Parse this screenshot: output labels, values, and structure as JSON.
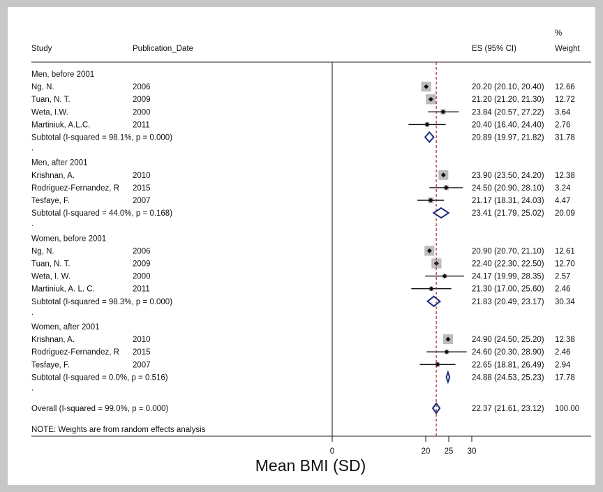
{
  "chart_data": {
    "type": "forest",
    "headers": {
      "study": "Study",
      "date": "Publication_Date",
      "es": "ES (95% CI)",
      "weight_pct": "%",
      "weight": "Weight"
    },
    "xlabel": "Mean BMI (SD)",
    "x_ticks": [
      "0",
      "20",
      "25",
      "30"
    ],
    "xlim": [
      0,
      30
    ],
    "reference_line": 22.37,
    "note": "NOTE: Weights are from random effects analysis",
    "groups": [
      {
        "label": "Men, before 2001",
        "studies": [
          {
            "study": "Ng, N.",
            "date": "2006",
            "es": 20.2,
            "lo": 20.1,
            "hi": 20.4,
            "es_text": "20.20 (20.10, 20.40)",
            "weight": "12.66",
            "w": 12.66
          },
          {
            "study": "Tuan, N. T.",
            "date": "2009",
            "es": 21.2,
            "lo": 21.2,
            "hi": 21.3,
            "es_text": "21.20 (21.20, 21.30)",
            "weight": "12.72",
            "w": 12.72
          },
          {
            "study": "Weta, I.W.",
            "date": "2000",
            "es": 23.84,
            "lo": 20.57,
            "hi": 27.22,
            "es_text": "23.84 (20.57, 27.22)",
            "weight": "3.64",
            "w": 3.64
          },
          {
            "study": "Martiniuk, A.L.C.",
            "date": "2011",
            "es": 20.4,
            "lo": 16.4,
            "hi": 24.4,
            "es_text": "20.40 (16.40, 24.40)",
            "weight": "2.76",
            "w": 2.76
          }
        ],
        "subtotal": {
          "label": "Subtotal  (I-squared = 98.1%, p = 0.000)",
          "es": 20.89,
          "lo": 19.97,
          "hi": 21.82,
          "es_text": "20.89 (19.97, 21.82)",
          "weight": "31.78"
        }
      },
      {
        "label": "Men, after 2001",
        "studies": [
          {
            "study": "Krishnan, A.",
            "date": "2010",
            "es": 23.9,
            "lo": 23.5,
            "hi": 24.2,
            "es_text": "23.90 (23.50, 24.20)",
            "weight": "12.38",
            "w": 12.38
          },
          {
            "study": "Rodriguez-Fernandez, R",
            "date": "2015",
            "es": 24.5,
            "lo": 20.9,
            "hi": 28.1,
            "es_text": "24.50 (20.90, 28.10)",
            "weight": "3.24",
            "w": 3.24
          },
          {
            "study": "Tesfaye, F.",
            "date": "2007",
            "es": 21.17,
            "lo": 18.31,
            "hi": 24.03,
            "es_text": "21.17 (18.31, 24.03)",
            "weight": "4.47",
            "w": 4.47
          }
        ],
        "subtotal": {
          "label": "Subtotal  (I-squared = 44.0%, p = 0.168)",
          "es": 23.41,
          "lo": 21.79,
          "hi": 25.02,
          "es_text": "23.41 (21.79, 25.02)",
          "weight": "20.09"
        }
      },
      {
        "label": "Women, before 2001",
        "studies": [
          {
            "study": "Ng, N.",
            "date": "2006",
            "es": 20.9,
            "lo": 20.7,
            "hi": 21.1,
            "es_text": "20.90 (20.70, 21.10)",
            "weight": "12.61",
            "w": 12.61
          },
          {
            "study": "Tuan, N. T.",
            "date": "2009",
            "es": 22.4,
            "lo": 22.3,
            "hi": 22.5,
            "es_text": "22.40 (22.30, 22.50)",
            "weight": "12.70",
            "w": 12.7
          },
          {
            "study": "Weta, I. W.",
            "date": "2000",
            "es": 24.17,
            "lo": 19.99,
            "hi": 28.35,
            "es_text": "24.17 (19.99, 28.35)",
            "weight": "2.57",
            "w": 2.57
          },
          {
            "study": "Martiniuk, A. L. C.",
            "date": "2011",
            "es": 21.3,
            "lo": 17.0,
            "hi": 25.6,
            "es_text": "21.30 (17.00, 25.60)",
            "weight": "2.46",
            "w": 2.46
          }
        ],
        "subtotal": {
          "label": "Subtotal  (I-squared = 98.3%, p = 0.000)",
          "es": 21.83,
          "lo": 20.49,
          "hi": 23.17,
          "es_text": "21.83 (20.49, 23.17)",
          "weight": "30.34"
        }
      },
      {
        "label": "Women, after 2001",
        "studies": [
          {
            "study": "Krishnan, A.",
            "date": "2010",
            "es": 24.9,
            "lo": 24.5,
            "hi": 25.2,
            "es_text": "24.90 (24.50, 25.20)",
            "weight": "12.38",
            "w": 12.38
          },
          {
            "study": "Rodriguez-Fernandez, R",
            "date": "2015",
            "es": 24.6,
            "lo": 20.3,
            "hi": 28.9,
            "es_text": "24.60 (20.30, 28.90)",
            "weight": "2.46",
            "w": 2.46
          },
          {
            "study": "Tesfaye, F.",
            "date": "2007",
            "es": 22.65,
            "lo": 18.81,
            "hi": 26.49,
            "es_text": "22.65 (18.81, 26.49)",
            "weight": "2.94",
            "w": 2.94
          }
        ],
        "subtotal": {
          "label": "Subtotal  (I-squared = 0.0%, p = 0.516)",
          "es": 24.88,
          "lo": 24.53,
          "hi": 25.23,
          "es_text": "24.88 (24.53, 25.23)",
          "weight": "17.78"
        }
      }
    ],
    "overall": {
      "label": "Overall  (I-squared = 99.0%, p = 0.000)",
      "es": 22.37,
      "lo": 21.61,
      "hi": 23.12,
      "es_text": "22.37 (21.61, 23.12)",
      "weight": "100.00"
    }
  }
}
